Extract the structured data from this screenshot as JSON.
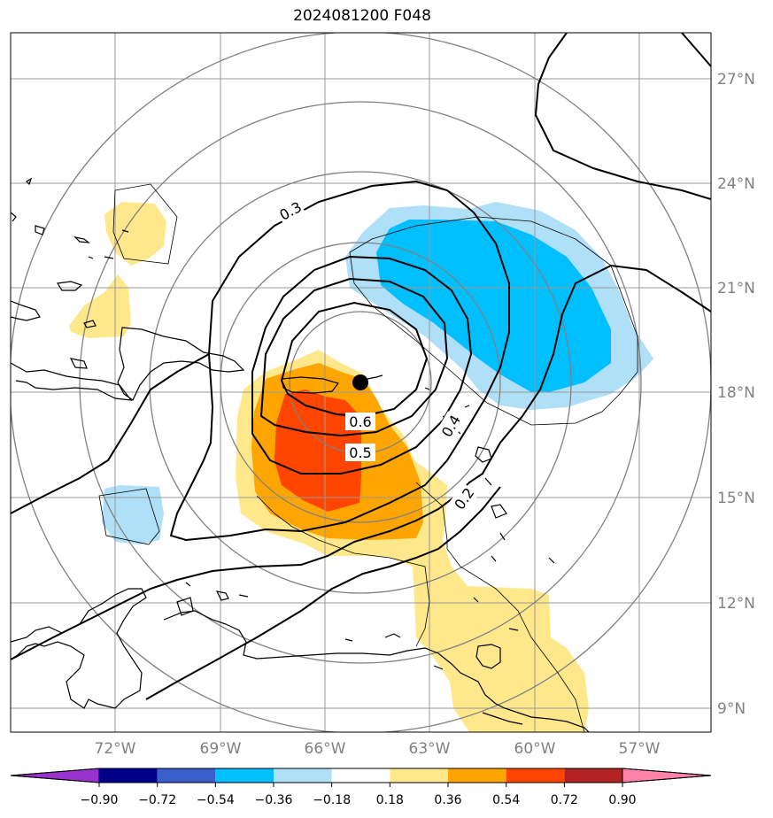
{
  "title": "2024081200 F048",
  "lon_labels": [
    "72°W",
    "69°W",
    "66°W",
    "63°W",
    "60°W",
    "57°W"
  ],
  "lat_labels": [
    "27°N",
    "24°N",
    "21°N",
    "18°N",
    "15°N",
    "12°N",
    "9°N"
  ],
  "colorbar": {
    "ticks": [
      "−0.90",
      "−0.72",
      "−0.54",
      "−0.36",
      "−0.18",
      "0.18",
      "0.36",
      "0.54",
      "0.72",
      "0.90"
    ],
    "colors": [
      "#9932cc",
      "#00008b",
      "#3a5fcd",
      "#00bfff",
      "#b0e0f8",
      "#ffffff",
      "#ffe88c",
      "#ffa500",
      "#ff4500",
      "#b22222",
      "#ff82ab"
    ]
  },
  "contour_labels": [
    "0.3",
    "0.6",
    "0.5",
    "0.4",
    "0.2"
  ],
  "colors": {
    "grid": "#999999",
    "range_rings": "#808080",
    "axis_labels": "#808080",
    "center_marker": "#000000"
  }
}
